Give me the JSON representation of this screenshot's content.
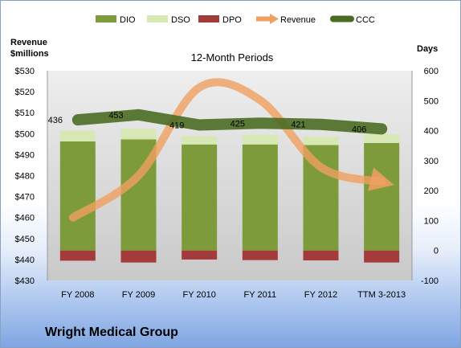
{
  "chart_data": {
    "type": "bar",
    "title": "12-Month Periods",
    "company": "Wright Medical Group",
    "categories": [
      "FY 2008",
      "FY 2009",
      "FY 2010",
      "FY 2011",
      "FY 2012",
      "TTM 3-2013"
    ],
    "left_axis": {
      "label_line1": "Revenue",
      "label_line2": "$millions",
      "ylim": [
        430,
        530
      ],
      "step": 10,
      "tick_prefix": "$"
    },
    "right_axis": {
      "label": "Days",
      "ylim": [
        -100,
        600
      ],
      "step": 100
    },
    "legend_position": "top",
    "grid": false,
    "series": [
      {
        "name": "DIO",
        "kind": "bar",
        "axis": "right",
        "color": "#7d9b3a",
        "values": [
          364,
          371,
          354,
          354,
          352,
          359
        ]
      },
      {
        "name": "DSO",
        "kind": "bar",
        "axis": "right",
        "color": "#d7e8b4",
        "values": [
          36,
          36,
          28,
          32,
          28,
          29
        ]
      },
      {
        "name": "DPO",
        "kind": "bar",
        "axis": "right",
        "color": "#a33b3b",
        "values": [
          -34,
          -40,
          -30,
          -32,
          -33,
          -40
        ]
      },
      {
        "name": "Revenue",
        "kind": "line",
        "axis": "left",
        "color": "#f0a060",
        "values": [
          460,
          480,
          522,
          516,
          484,
          477
        ]
      },
      {
        "name": "CCC",
        "kind": "line",
        "axis": "right",
        "color": "#4a6b22",
        "values": [
          436,
          453,
          419,
          425,
          421,
          406
        ]
      }
    ],
    "data_labels": [
      "436",
      "453",
      "419",
      "425",
      "421",
      "406"
    ]
  }
}
